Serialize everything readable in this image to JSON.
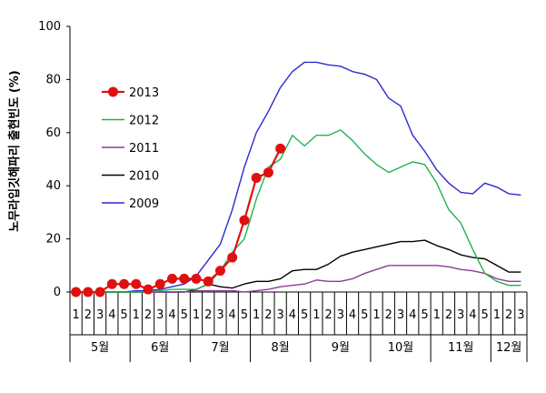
{
  "chart_data": {
    "type": "line",
    "ylabel": "노무라입깃해파리 출현빈도 (%)",
    "ylim": [
      0,
      100
    ],
    "yticks": [
      0,
      20,
      40,
      60,
      80,
      100
    ],
    "week_labels": [
      "1",
      "2",
      "3",
      "4",
      "5",
      "1",
      "2",
      "3",
      "4",
      "5",
      "1",
      "2",
      "3",
      "4",
      "5",
      "1",
      "2",
      "3",
      "4",
      "5",
      "1",
      "2",
      "3",
      "4",
      "5",
      "1",
      "2",
      "3",
      "4",
      "5",
      "1",
      "2",
      "3",
      "4",
      "5",
      "1",
      "2",
      "3"
    ],
    "months": [
      {
        "label": "5월",
        "start": 0,
        "end": 5
      },
      {
        "label": "6월",
        "start": 5,
        "end": 10
      },
      {
        "label": "7월",
        "start": 10,
        "end": 15
      },
      {
        "label": "8월",
        "start": 15,
        "end": 20
      },
      {
        "label": "9월",
        "start": 20,
        "end": 25
      },
      {
        "label": "10월",
        "start": 25,
        "end": 30
      },
      {
        "label": "11월",
        "start": 30,
        "end": 35
      },
      {
        "label": "12월",
        "start": 35,
        "end": 38
      }
    ],
    "legend_position": "left-middle",
    "grid": false,
    "series": [
      {
        "name": "2013",
        "color": "#e01010",
        "marker": "circle",
        "values": [
          0,
          0,
          0,
          3,
          3,
          3,
          1,
          3,
          5,
          5,
          5,
          4,
          8,
          13,
          27,
          43,
          45,
          54,
          null,
          null,
          null,
          null,
          null,
          null,
          null,
          null,
          null,
          null,
          null,
          null,
          null,
          null,
          null,
          null,
          null,
          null,
          null,
          null
        ]
      },
      {
        "name": "2012",
        "color": "#22b14c",
        "marker": "none",
        "values": [
          0,
          0,
          0,
          0,
          0,
          0,
          0,
          0.5,
          1,
          1,
          1,
          3,
          8,
          15,
          20,
          35,
          47,
          50,
          59,
          55,
          59,
          59,
          61,
          57,
          52,
          48,
          45,
          47,
          49,
          48,
          41,
          31,
          26,
          16,
          7,
          4,
          2.5,
          2.5
        ]
      },
      {
        "name": "2011",
        "color": "#8e3a9a",
        "marker": "none",
        "values": [
          0,
          0,
          0,
          0,
          0,
          0,
          0,
          0,
          0,
          0,
          0.5,
          0.5,
          0.5,
          0.5,
          0,
          0.5,
          1,
          2,
          2.5,
          3,
          4.5,
          4,
          4,
          5,
          7,
          8.5,
          10,
          10,
          10,
          10,
          10,
          9.5,
          8.5,
          8,
          7,
          5,
          4,
          4
        ]
      },
      {
        "name": "2010",
        "color": "#000000",
        "marker": "none",
        "values": [
          0,
          0,
          0,
          0,
          0,
          0,
          0,
          0,
          0,
          0,
          1,
          3,
          2,
          1.5,
          3,
          4,
          4,
          5,
          8,
          8.5,
          8.5,
          10.5,
          13.5,
          15,
          16,
          17,
          18,
          19,
          19,
          19.5,
          17.5,
          16,
          14,
          13,
          12.5,
          10,
          7.5,
          7.5
        ]
      },
      {
        "name": "2009",
        "color": "#2a2ad0",
        "marker": "none",
        "values": [
          0,
          0,
          0,
          0,
          0,
          0.5,
          0.5,
          1,
          2,
          3,
          6,
          12,
          18,
          31,
          47,
          60,
          68,
          77,
          83,
          86.5,
          86.5,
          85.5,
          85,
          83,
          82,
          80,
          73,
          70,
          59,
          53,
          46,
          41,
          37.5,
          37,
          41,
          39.5,
          37,
          36.5
        ]
      }
    ]
  }
}
